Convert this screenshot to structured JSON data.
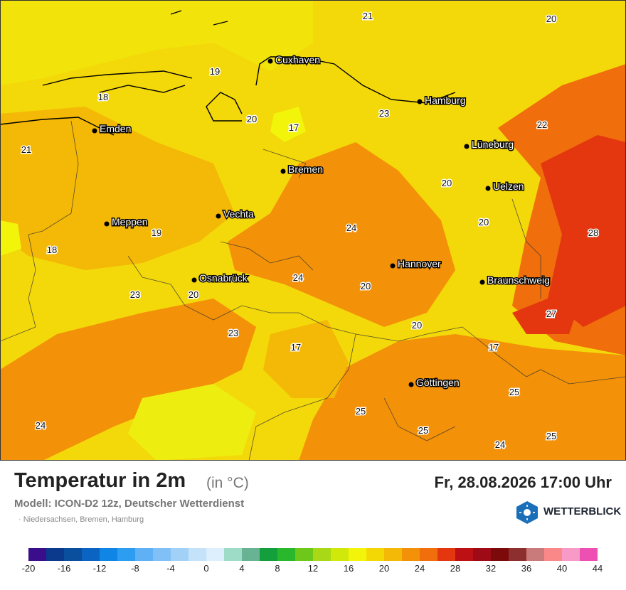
{
  "header": {
    "title": "Temperatur in 2m",
    "unit": "(in °C)",
    "datetime": "Fr, 28.08.2026 17:00 Uhr",
    "model": "Modell: ICON-D2 12z, Deutscher Wetterdienst",
    "region": "· Niedersachsen, Bremen, Hamburg",
    "logo_text": "WETTERBLICK"
  },
  "cities": [
    "Cuxhaven",
    "Hamburg",
    "Emden",
    "Lüneburg",
    "Bremen",
    "Uelzen",
    "Vechta",
    "Meppen",
    "Hannover",
    "Osnabrück",
    "Braunschweig",
    "Göttingen"
  ],
  "temperature_labels": [
    "21",
    "20",
    "19",
    "18",
    "20",
    "23",
    "17",
    "22",
    "21",
    "20",
    "24",
    "20",
    "18",
    "19",
    "28",
    "24",
    "20",
    "23",
    "20",
    "20",
    "27",
    "23",
    "17",
    "17",
    "25",
    "25",
    "25",
    "24",
    "24",
    "25"
  ],
  "scale": {
    "colors": [
      "#3a0d8c",
      "#0b3a8c",
      "#0a4f9e",
      "#0c64c2",
      "#0f86e6",
      "#2c9df1",
      "#5fb0f5",
      "#80c0f7",
      "#a2d1f8",
      "#c4e2fa",
      "#ddeefc",
      "#9fdcc8",
      "#68b393",
      "#13a03c",
      "#29b72c",
      "#6ec81a",
      "#a8d816",
      "#d1e80b",
      "#f2f40a",
      "#f3d805",
      "#f4b806",
      "#f39108",
      "#f06e0b",
      "#e4370f",
      "#bd1014",
      "#9e0b16",
      "#7d0a0a",
      "#8d2f2f",
      "#c97b7b",
      "#fa8888",
      "#f89ac8",
      "#ee4fb3"
    ],
    "tick_labels": [
      "-20",
      "-16",
      "-12",
      "-8",
      "-4",
      "0",
      "4",
      "8",
      "12",
      "16",
      "20",
      "24",
      "28",
      "32",
      "36",
      "40",
      "44"
    ]
  }
}
